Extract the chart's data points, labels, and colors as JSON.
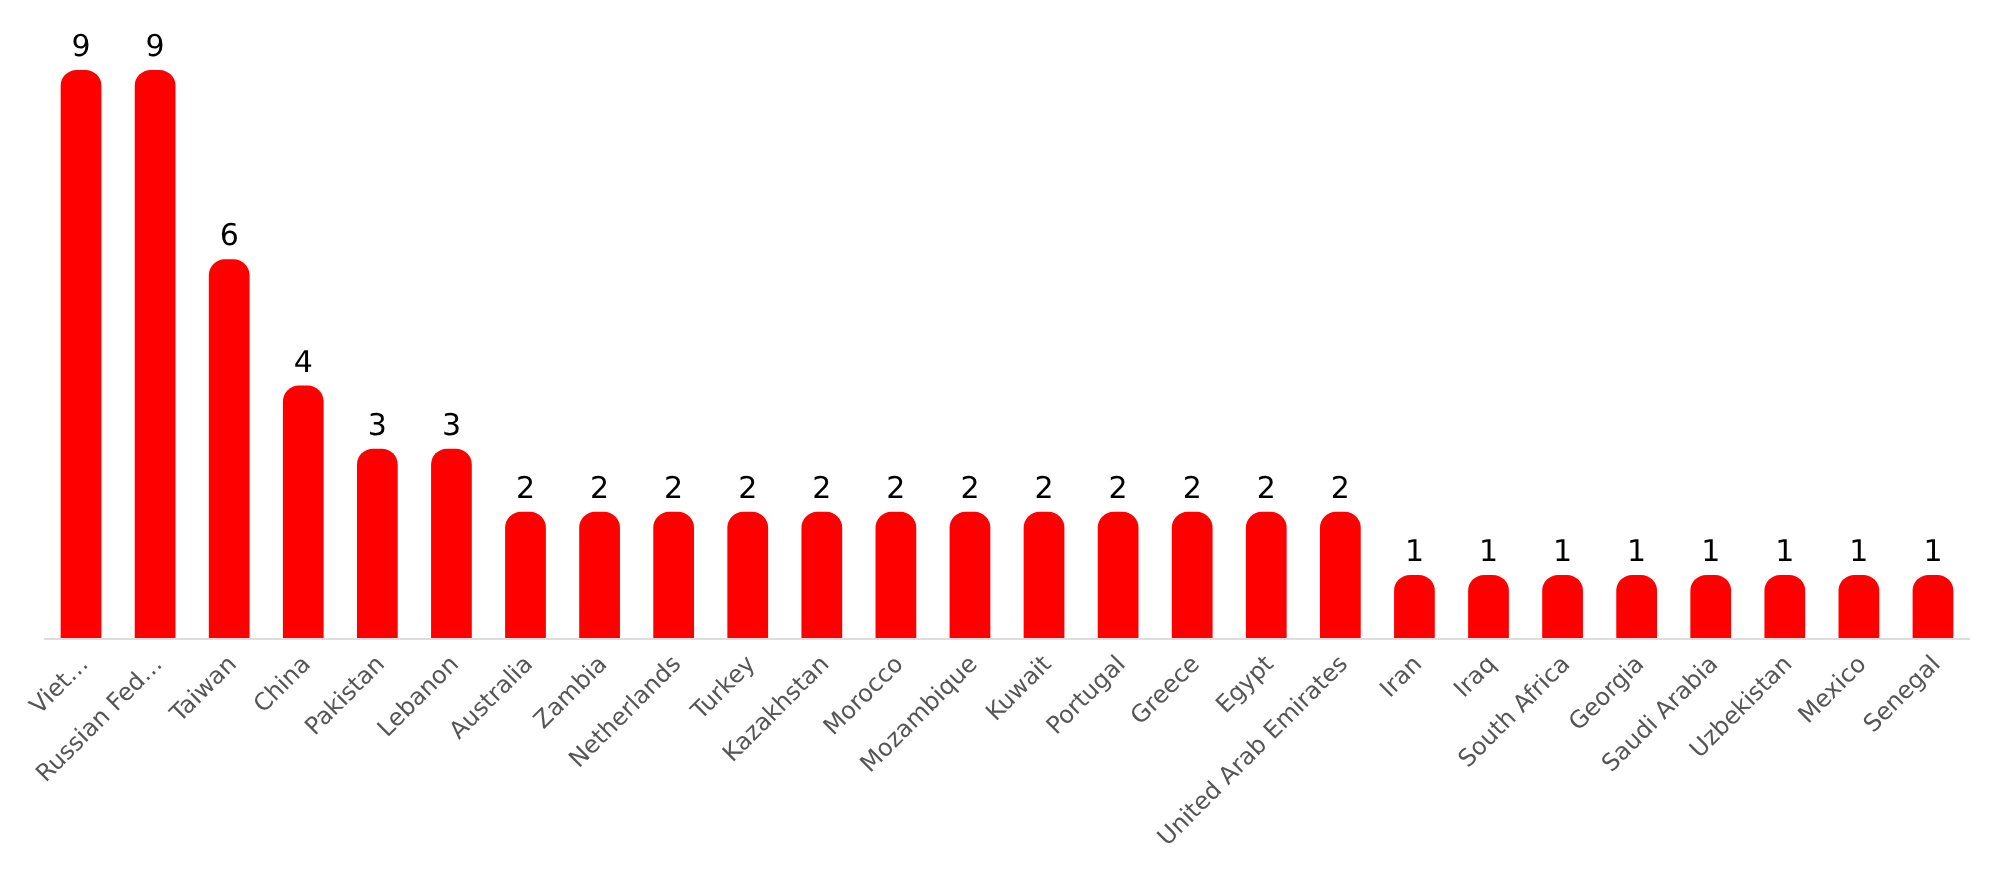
{
  "chart_data": {
    "type": "bar",
    "categories": [
      "Viet…",
      "Russian Fed…",
      "Taiwan",
      "China",
      "Pakistan",
      "Lebanon",
      "Australia",
      "Zambia",
      "Netherlands",
      "Turkey",
      "Kazakhstan",
      "Morocco",
      "Mozambique",
      "Kuwait",
      "Portugal",
      "Greece",
      "Egypt",
      "United Arab Emirates",
      "Iran",
      "Iraq",
      "South Africa",
      "Georgia",
      "Saudi Arabia",
      "Uzbekistan",
      "Mexico",
      "Senegal"
    ],
    "values": [
      9,
      9,
      6,
      4,
      3,
      3,
      2,
      2,
      2,
      2,
      2,
      2,
      2,
      2,
      2,
      2,
      2,
      2,
      1,
      1,
      1,
      1,
      1,
      1,
      1,
      1
    ],
    "color": "#ff0000",
    "data_labels": true
  }
}
